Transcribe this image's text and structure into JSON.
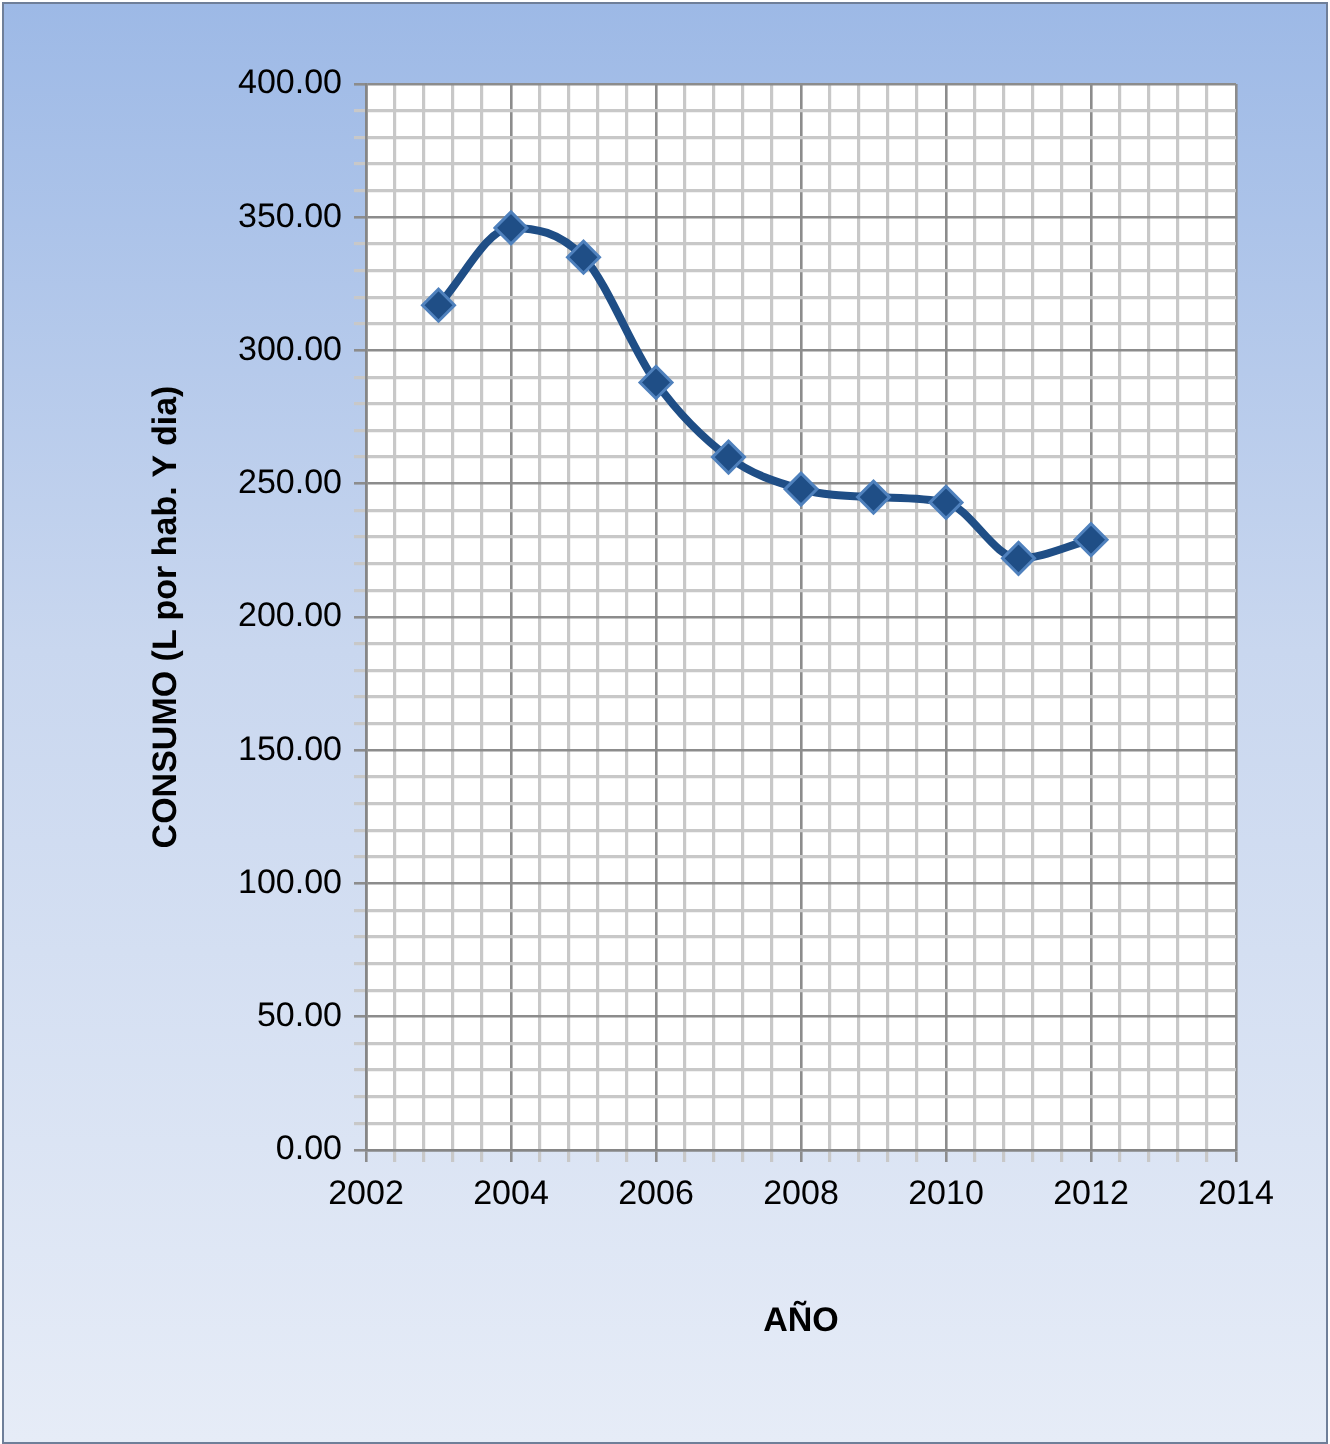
{
  "chart_data": {
    "type": "line",
    "xlabel": "AÑO",
    "ylabel": "CONSUMO (L por hab. Y dia)",
    "x": [
      2003,
      2004,
      2005,
      2006,
      2007,
      2008,
      2009,
      2010,
      2011,
      2012
    ],
    "series": [
      {
        "color": "#1f4e86",
        "values": [
          317,
          346,
          335,
          288,
          260,
          248,
          245,
          243,
          222,
          229
        ]
      }
    ],
    "xlim": [
      2002,
      2014
    ],
    "xticks": [
      2002,
      {
        "value": 2002.4,
        "label": null
      },
      {
        "value": 2002.8,
        "label": null
      },
      {
        "value": 2003.2,
        "label": null
      },
      {
        "value": 2003.6,
        "label": null
      },
      2004,
      {
        "value": 2004.4,
        "label": null
      },
      {
        "value": 2004.8,
        "label": null
      },
      {
        "value": 2005.2,
        "label": null
      },
      {
        "value": 2005.6,
        "label": null
      },
      2006,
      {
        "value": 2006.4,
        "label": null
      },
      {
        "value": 2006.8,
        "label": null
      },
      {
        "value": 2007.2,
        "label": null
      },
      {
        "value": 2007.6,
        "label": null
      },
      2008,
      {
        "value": 2008.4,
        "label": null
      },
      {
        "value": 2008.8,
        "label": null
      },
      {
        "value": 2009.2,
        "label": null
      },
      {
        "value": 2009.6,
        "label": null
      },
      2010,
      {
        "value": 2010.4,
        "label": null
      },
      {
        "value": 2010.8,
        "label": null
      },
      {
        "value": 2011.2,
        "label": null
      },
      {
        "value": 2011.6,
        "label": null
      },
      2012,
      {
        "value": 2012.4,
        "label": null
      },
      {
        "value": 2012.8,
        "label": null
      },
      {
        "value": 2013.2,
        "label": null
      },
      {
        "value": 2013.6,
        "label": null
      },
      2014
    ],
    "ylim": [
      0,
      400
    ],
    "yticks": [
      {
        "value": 0,
        "label": "0.00"
      },
      {
        "value": 10,
        "label": null
      },
      {
        "value": 20,
        "label": null
      },
      {
        "value": 30,
        "label": null
      },
      {
        "value": 40,
        "label": null
      },
      {
        "value": 50,
        "label": "50.00"
      },
      {
        "value": 60,
        "label": null
      },
      {
        "value": 70,
        "label": null
      },
      {
        "value": 80,
        "label": null
      },
      {
        "value": 90,
        "label": null
      },
      {
        "value": 100,
        "label": "100.00"
      },
      {
        "value": 110,
        "label": null
      },
      {
        "value": 120,
        "label": null
      },
      {
        "value": 130,
        "label": null
      },
      {
        "value": 140,
        "label": null
      },
      {
        "value": 150,
        "label": "150.00"
      },
      {
        "value": 160,
        "label": null
      },
      {
        "value": 170,
        "label": null
      },
      {
        "value": 180,
        "label": null
      },
      {
        "value": 190,
        "label": null
      },
      {
        "value": 200,
        "label": "200.00"
      },
      {
        "value": 210,
        "label": null
      },
      {
        "value": 220,
        "label": null
      },
      {
        "value": 230,
        "label": null
      },
      {
        "value": 240,
        "label": null
      },
      {
        "value": 250,
        "label": "250.00"
      },
      {
        "value": 260,
        "label": null
      },
      {
        "value": 270,
        "label": null
      },
      {
        "value": 280,
        "label": null
      },
      {
        "value": 290,
        "label": null
      },
      {
        "value": 300,
        "label": "300.00"
      },
      {
        "value": 310,
        "label": null
      },
      {
        "value": 320,
        "label": null
      },
      {
        "value": 330,
        "label": null
      },
      {
        "value": 340,
        "label": null
      },
      {
        "value": 350,
        "label": "350.00"
      },
      {
        "value": 360,
        "label": null
      },
      {
        "value": 370,
        "label": null
      },
      {
        "value": 380,
        "label": null
      },
      {
        "value": 390,
        "label": null
      },
      {
        "value": 400,
        "label": "400.00"
      }
    ],
    "grid": true,
    "legend": false,
    "marker": "diamond",
    "line_style": "solid"
  }
}
